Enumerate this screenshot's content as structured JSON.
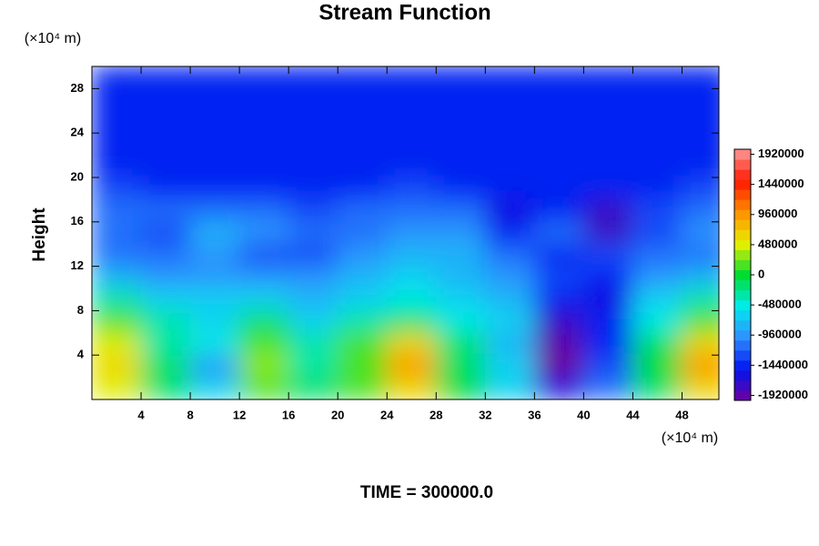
{
  "chart_data": {
    "type": "contour",
    "title": "Stream Function",
    "ylabel": "Height",
    "y_unit": "(×10⁴ m)",
    "x_unit": "(×10⁴ m)",
    "footer": "TIME = 300000.0",
    "xlim": [
      0,
      51
    ],
    "ylim": [
      0,
      30
    ],
    "xticks": [
      4,
      8,
      12,
      16,
      20,
      24,
      28,
      32,
      36,
      40,
      44,
      48
    ],
    "yticks": [
      4,
      8,
      12,
      16,
      20,
      24,
      28
    ],
    "x": [
      2,
      6,
      10,
      14,
      18,
      22,
      26,
      30,
      34,
      38,
      42,
      46,
      50
    ],
    "y": [
      29,
      27,
      25,
      23,
      21,
      19,
      17,
      15,
      13,
      11,
      9,
      7,
      5,
      3,
      1
    ],
    "z": [
      [
        -1520000,
        -1520000,
        -1520000,
        -1520000,
        -1520000,
        -1520000,
        -1520000,
        -1520000,
        -1520000,
        -1520000,
        -1520000,
        -1520000,
        -1520000
      ],
      [
        -1520000,
        -1520000,
        -1520000,
        -1520000,
        -1520000,
        -1520000,
        -1520000,
        -1520000,
        -1520000,
        -1520000,
        -1520000,
        -1520000,
        -1520000
      ],
      [
        -1520000,
        -1520000,
        -1520000,
        -1520000,
        -1520000,
        -1520000,
        -1520000,
        -1520000,
        -1520000,
        -1520000,
        -1520000,
        -1520000,
        -1520000
      ],
      [
        -1500000,
        -1520000,
        -1520000,
        -1520000,
        -1520000,
        -1520000,
        -1520000,
        -1520000,
        -1520000,
        -1520000,
        -1520000,
        -1520000,
        -1500000
      ],
      [
        -1450000,
        -1500000,
        -1500000,
        -1500000,
        -1500000,
        -1500000,
        -1480000,
        -1500000,
        -1500000,
        -1500000,
        -1500000,
        -1500000,
        -1450000
      ],
      [
        -1350000,
        -1400000,
        -1400000,
        -1400000,
        -1450000,
        -1400000,
        -1350000,
        -1400000,
        -1450000,
        -1450000,
        -1450000,
        -1400000,
        -1350000
      ],
      [
        -1200000,
        -1150000,
        -1100000,
        -1150000,
        -1300000,
        -1200000,
        -1050000,
        -1150000,
        -1600000,
        -1500000,
        -1700000,
        -1300000,
        -1100000
      ],
      [
        -1100000,
        -1250000,
        -850000,
        -1000000,
        -1200000,
        -1100000,
        -900000,
        -1000000,
        -1400000,
        -1200000,
        -1800000,
        -1300000,
        -1000000
      ],
      [
        -1100000,
        -1200000,
        -1000000,
        -1250000,
        -1300000,
        -900000,
        -750000,
        -850000,
        -1100000,
        -1400000,
        -1300000,
        -1200000,
        -1100000
      ],
      [
        -850000,
        -950000,
        -900000,
        -950000,
        -1000000,
        -750000,
        -700000,
        -800000,
        -950000,
        -1300000,
        -1500000,
        -1000000,
        -850000
      ],
      [
        -300000,
        -600000,
        -700000,
        -650000,
        -750000,
        -650000,
        -550000,
        -700000,
        -800000,
        -1500000,
        -1600000,
        -700000,
        -300000
      ],
      [
        100000,
        -400000,
        -600000,
        -200000,
        -600000,
        -400000,
        -100000,
        -500000,
        -700000,
        -1700000,
        -1500000,
        -500000,
        100000
      ],
      [
        400000,
        -300000,
        -500000,
        200000,
        -400000,
        100000,
        700000,
        -200000,
        -800000,
        -2000000,
        -1400000,
        -100000,
        600000
      ],
      [
        600000,
        -200000,
        -900000,
        300000,
        -300000,
        200000,
        900000,
        -100000,
        -700000,
        -2100000,
        -1300000,
        0,
        900000
      ],
      [
        400000,
        -100000,
        -600000,
        200000,
        -200000,
        100000,
        600000,
        0,
        -600000,
        -1600000,
        -1100000,
        -100000,
        600000
      ]
    ],
    "clim": [
      -2000000,
      2000000
    ],
    "colorbar_ticks": [
      1920000,
      1440000,
      960000,
      480000,
      0,
      -480000,
      -960000,
      -1440000,
      -1920000
    ],
    "colormap": [
      "#70009c",
      "#0014f0",
      "#2f8fff",
      "#00ecec",
      "#00dc30",
      "#e8f000",
      "#ff9000",
      "#ff1800",
      "#ff9a9a"
    ]
  }
}
